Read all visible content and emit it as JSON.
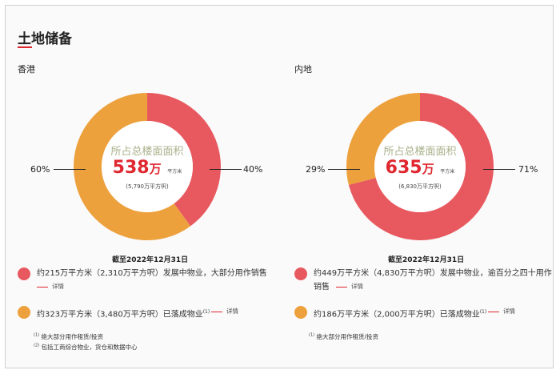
{
  "title": "土地储备",
  "colors": {
    "red": "#e8595f",
    "orange": "#eda13d",
    "accent": "#e0262f"
  },
  "hk": {
    "region": "香港",
    "center_label": "所占总楼面面积",
    "value": "538",
    "unit": "万",
    "sqm": "平方米",
    "sqft": "(5,790万平方呎)",
    "left_pct": "60%",
    "right_pct": "40%",
    "date": "截至2022年12月31日",
    "chart_data": {
      "type": "pie",
      "categories": [
        "发展中物业",
        "已落成物业"
      ],
      "values": [
        40,
        60
      ]
    },
    "legend": [
      {
        "text": "约215万平方米（2,310万平方呎）发展中物业，大部分用作销售",
        "sup": "",
        "more": "详情"
      },
      {
        "text": "约323万平方米（3,480万平方呎）已落成物业",
        "sup": "(1)",
        "more": "详情"
      }
    ],
    "notes": [
      {
        "sup": "(1)",
        "text": "绝大部分用作租赁/投资"
      },
      {
        "sup": "(2)",
        "text": "包括工商综合物业，货仓和数据中心"
      }
    ]
  },
  "mainland": {
    "region": "内地",
    "center_label": "所占总楼面面积",
    "value": "635",
    "unit": "万",
    "sqm": "平方米",
    "sqft": "(6,830万平方呎)",
    "left_pct": "29%",
    "right_pct": "71%",
    "date": "截至2022年12月31日",
    "chart_data": {
      "type": "pie",
      "categories": [
        "发展中物业",
        "已落成物业"
      ],
      "values": [
        71,
        29
      ]
    },
    "legend": [
      {
        "text": "约449万平方米（4,830万平方呎）发展中物业，逾百分之四十用作",
        "text2": "销售",
        "sup": "",
        "more": "详情"
      },
      {
        "text": "约186万平方米（2,000万平方呎）已落成物业",
        "sup": "(1)",
        "more": "详情"
      }
    ],
    "notes": [
      {
        "sup": "(1)",
        "text": "绝大部分用作租赁/投资"
      }
    ]
  }
}
